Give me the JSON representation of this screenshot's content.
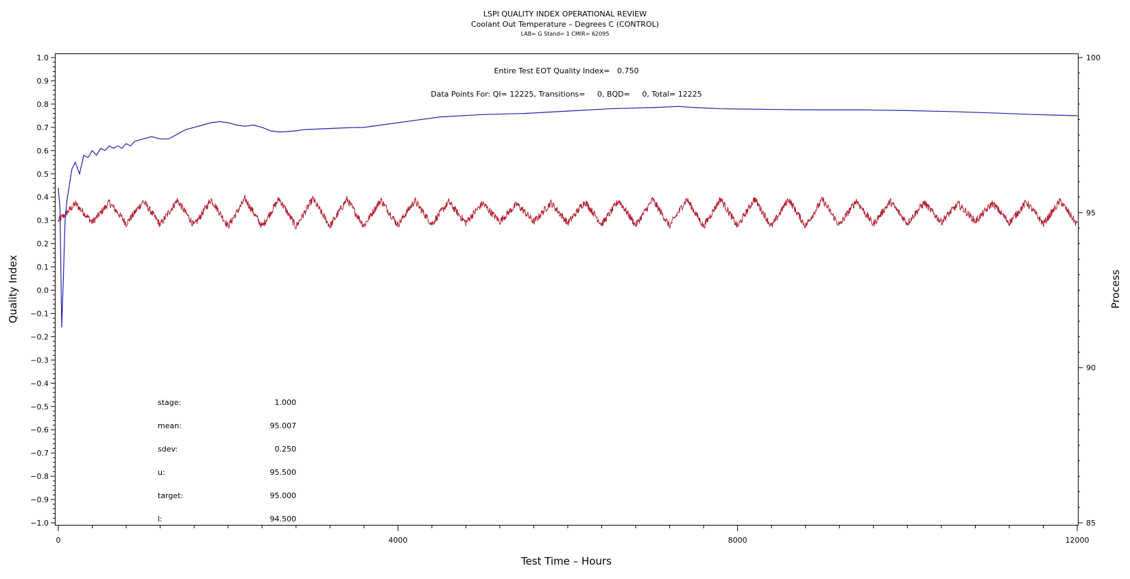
{
  "chart_data": {
    "type": "line",
    "title": "LSPI QUALITY INDEX OPERATIONAL REVIEW",
    "subtitle": "Coolant Out Temperature – Degrees C (CONTROL)",
    "subtitle2": "LAB= G Stand= 1 CMIR= 62095",
    "xlabel": "Test Time – Hours",
    "ylabel": "Quality Index",
    "y2label": "Process",
    "xlim": [
      0,
      12000
    ],
    "ylim": [
      -1.0,
      1.0
    ],
    "y2lim": [
      85,
      100
    ],
    "x_ticks": [
      0,
      4000,
      8000,
      12000
    ],
    "y_ticks": [
      -1.0,
      -0.9,
      -0.8,
      -0.7,
      -0.6,
      -0.5,
      -0.4,
      -0.3,
      -0.2,
      -0.1,
      0.0,
      0.1,
      0.2,
      0.3,
      0.4,
      0.5,
      0.6,
      0.7,
      0.8,
      0.9,
      1.0
    ],
    "y_tick_labels": [
      "−1.0",
      "−0.9",
      "−0.8",
      "−0.7",
      "−0.6",
      "−0.5",
      "−0.4",
      "−0.3",
      "−0.2",
      "−0.1",
      "0.0",
      "0.1",
      "0.2",
      "0.3",
      "0.4",
      "0.5",
      "0.6",
      "0.7",
      "0.8",
      "0.9",
      "1.0"
    ],
    "y2_ticks": [
      85,
      90,
      95,
      100
    ],
    "grid": false,
    "annotation_qi": "Entire Test EOT Quality Index=   0.750",
    "annotation_points": "Data Points For: QI= 12225, Transitions=     0, BQD=     0, Total= 12225",
    "stats": [
      {
        "label": "stage:",
        "value": "1.000"
      },
      {
        "label": "mean:",
        "value": "95.007"
      },
      {
        "label": "sdev:",
        "value": "0.250"
      },
      {
        "label": "u:",
        "value": "95.500"
      },
      {
        "label": "target:",
        "value": "95.000"
      },
      {
        "label": "l:",
        "value": "94.500"
      }
    ],
    "series": [
      {
        "axis": "left",
        "color": "#1f1fa8",
        "x": [
          0,
          20,
          40,
          60,
          80,
          100,
          130,
          160,
          200,
          250,
          300,
          350,
          400,
          450,
          500,
          550,
          600,
          650,
          700,
          750,
          800,
          850,
          900,
          1000,
          1100,
          1200,
          1300,
          1400,
          1500,
          1600,
          1700,
          1800,
          1900,
          2000,
          2100,
          2200,
          2300,
          2400,
          2500,
          2600,
          2700,
          2800,
          2900,
          3000,
          3200,
          3400,
          3600,
          3800,
          4000,
          4200,
          4500,
          5000,
          5500,
          6000,
          6500,
          7000,
          7300,
          7500,
          7800,
          8200,
          8600,
          9000,
          9500,
          10000,
          10500,
          11000,
          11500,
          12000
        ],
        "y": [
          0.44,
          0.35,
          -0.16,
          0.05,
          0.3,
          0.38,
          0.45,
          0.52,
          0.55,
          0.5,
          0.58,
          0.57,
          0.6,
          0.58,
          0.61,
          0.6,
          0.62,
          0.61,
          0.62,
          0.61,
          0.63,
          0.62,
          0.64,
          0.65,
          0.66,
          0.65,
          0.65,
          0.67,
          0.69,
          0.7,
          0.71,
          0.72,
          0.725,
          0.72,
          0.71,
          0.705,
          0.71,
          0.7,
          0.685,
          0.68,
          0.682,
          0.685,
          0.69,
          0.692,
          0.695,
          0.698,
          0.7,
          0.71,
          0.72,
          0.73,
          0.745,
          0.755,
          0.76,
          0.77,
          0.78,
          0.785,
          0.79,
          0.785,
          0.78,
          0.778,
          0.776,
          0.775,
          0.775,
          0.772,
          0.768,
          0.762,
          0.755,
          0.75
        ]
      },
      {
        "axis": "right",
        "color": "#b01c2e",
        "x_start": 0,
        "x_end": 12000,
        "center": 95.0,
        "amplitude": 0.45,
        "period_hours": 400,
        "noise": 0.12
      }
    ]
  }
}
